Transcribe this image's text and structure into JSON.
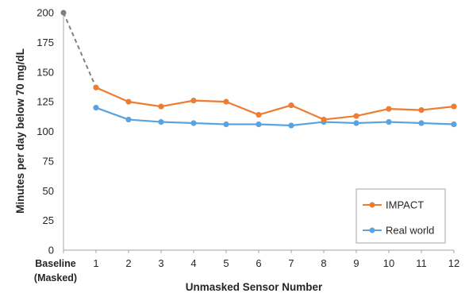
{
  "chart_data": {
    "type": "line",
    "categories": [
      "Baseline (Masked)",
      "1",
      "2",
      "3",
      "4",
      "5",
      "6",
      "7",
      "8",
      "9",
      "10",
      "11",
      "12"
    ],
    "category_lines": [
      [
        "Baseline",
        "(Masked)"
      ],
      [
        "1"
      ],
      [
        "2"
      ],
      [
        "3"
      ],
      [
        "4"
      ],
      [
        "5"
      ],
      [
        "6"
      ],
      [
        "7"
      ],
      [
        "8"
      ],
      [
        "9"
      ],
      [
        "10"
      ],
      [
        "11"
      ],
      [
        "12"
      ]
    ],
    "baseline": {
      "value": 200,
      "color": "#7f7f7f"
    },
    "series": [
      {
        "name": "IMPACT",
        "color": "#ed7d31",
        "values": [
          null,
          137,
          125,
          121,
          126,
          125,
          114,
          122,
          110,
          113,
          119,
          118,
          121
        ]
      },
      {
        "name": "Real world",
        "color": "#5ba3e0",
        "values": [
          null,
          120,
          110,
          108,
          107,
          106,
          106,
          105,
          108,
          107,
          108,
          107,
          106
        ]
      }
    ],
    "xlabel": "Unmasked Sensor Number",
    "ylabel": "Minutes per day below 70 mg/dL",
    "ylim": [
      0,
      200
    ],
    "yticks": [
      0,
      25,
      50,
      75,
      100,
      125,
      150,
      175,
      200
    ],
    "grid": false,
    "legend_position": "bottom-right"
  }
}
